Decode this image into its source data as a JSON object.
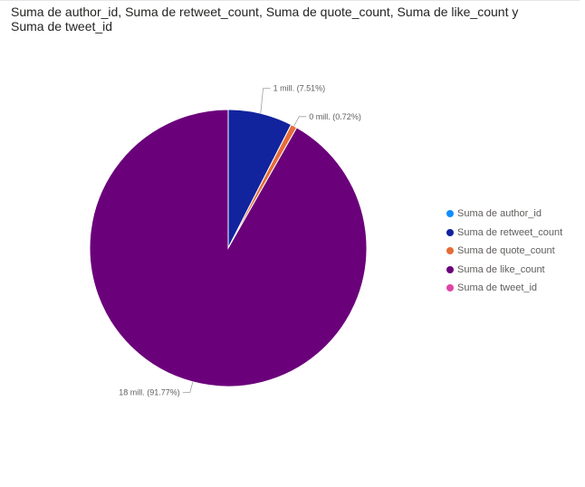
{
  "title": "Suma de author_id, Suma de retweet_count, Suma de quote_count, Suma de like_count y Suma de tweet_id",
  "chart_data": {
    "type": "pie",
    "title": "Suma de author_id, Suma de retweet_count, Suma de quote_count, Suma de like_count y Suma de tweet_id",
    "legend_position": "right",
    "series": [
      {
        "name": "Suma de author_id",
        "percent": 0.0,
        "color": "#118dff"
      },
      {
        "name": "Suma de retweet_count",
        "percent": 7.51,
        "color": "#12239e"
      },
      {
        "name": "Suma de quote_count",
        "percent": 0.72,
        "color": "#e66c37"
      },
      {
        "name": "Suma de like_count",
        "percent": 91.77,
        "color": "#6b007b"
      },
      {
        "name": "Suma de tweet_id",
        "percent": 0.0,
        "color": "#e044a7"
      }
    ],
    "data_labels": [
      {
        "series": "Suma de retweet_count",
        "text": "1 mill. (7.51%)"
      },
      {
        "series": "Suma de quote_count",
        "text": "0 mill. (0.72%)"
      },
      {
        "series": "Suma de like_count",
        "text": "18 mill. (91.77%)"
      }
    ]
  }
}
